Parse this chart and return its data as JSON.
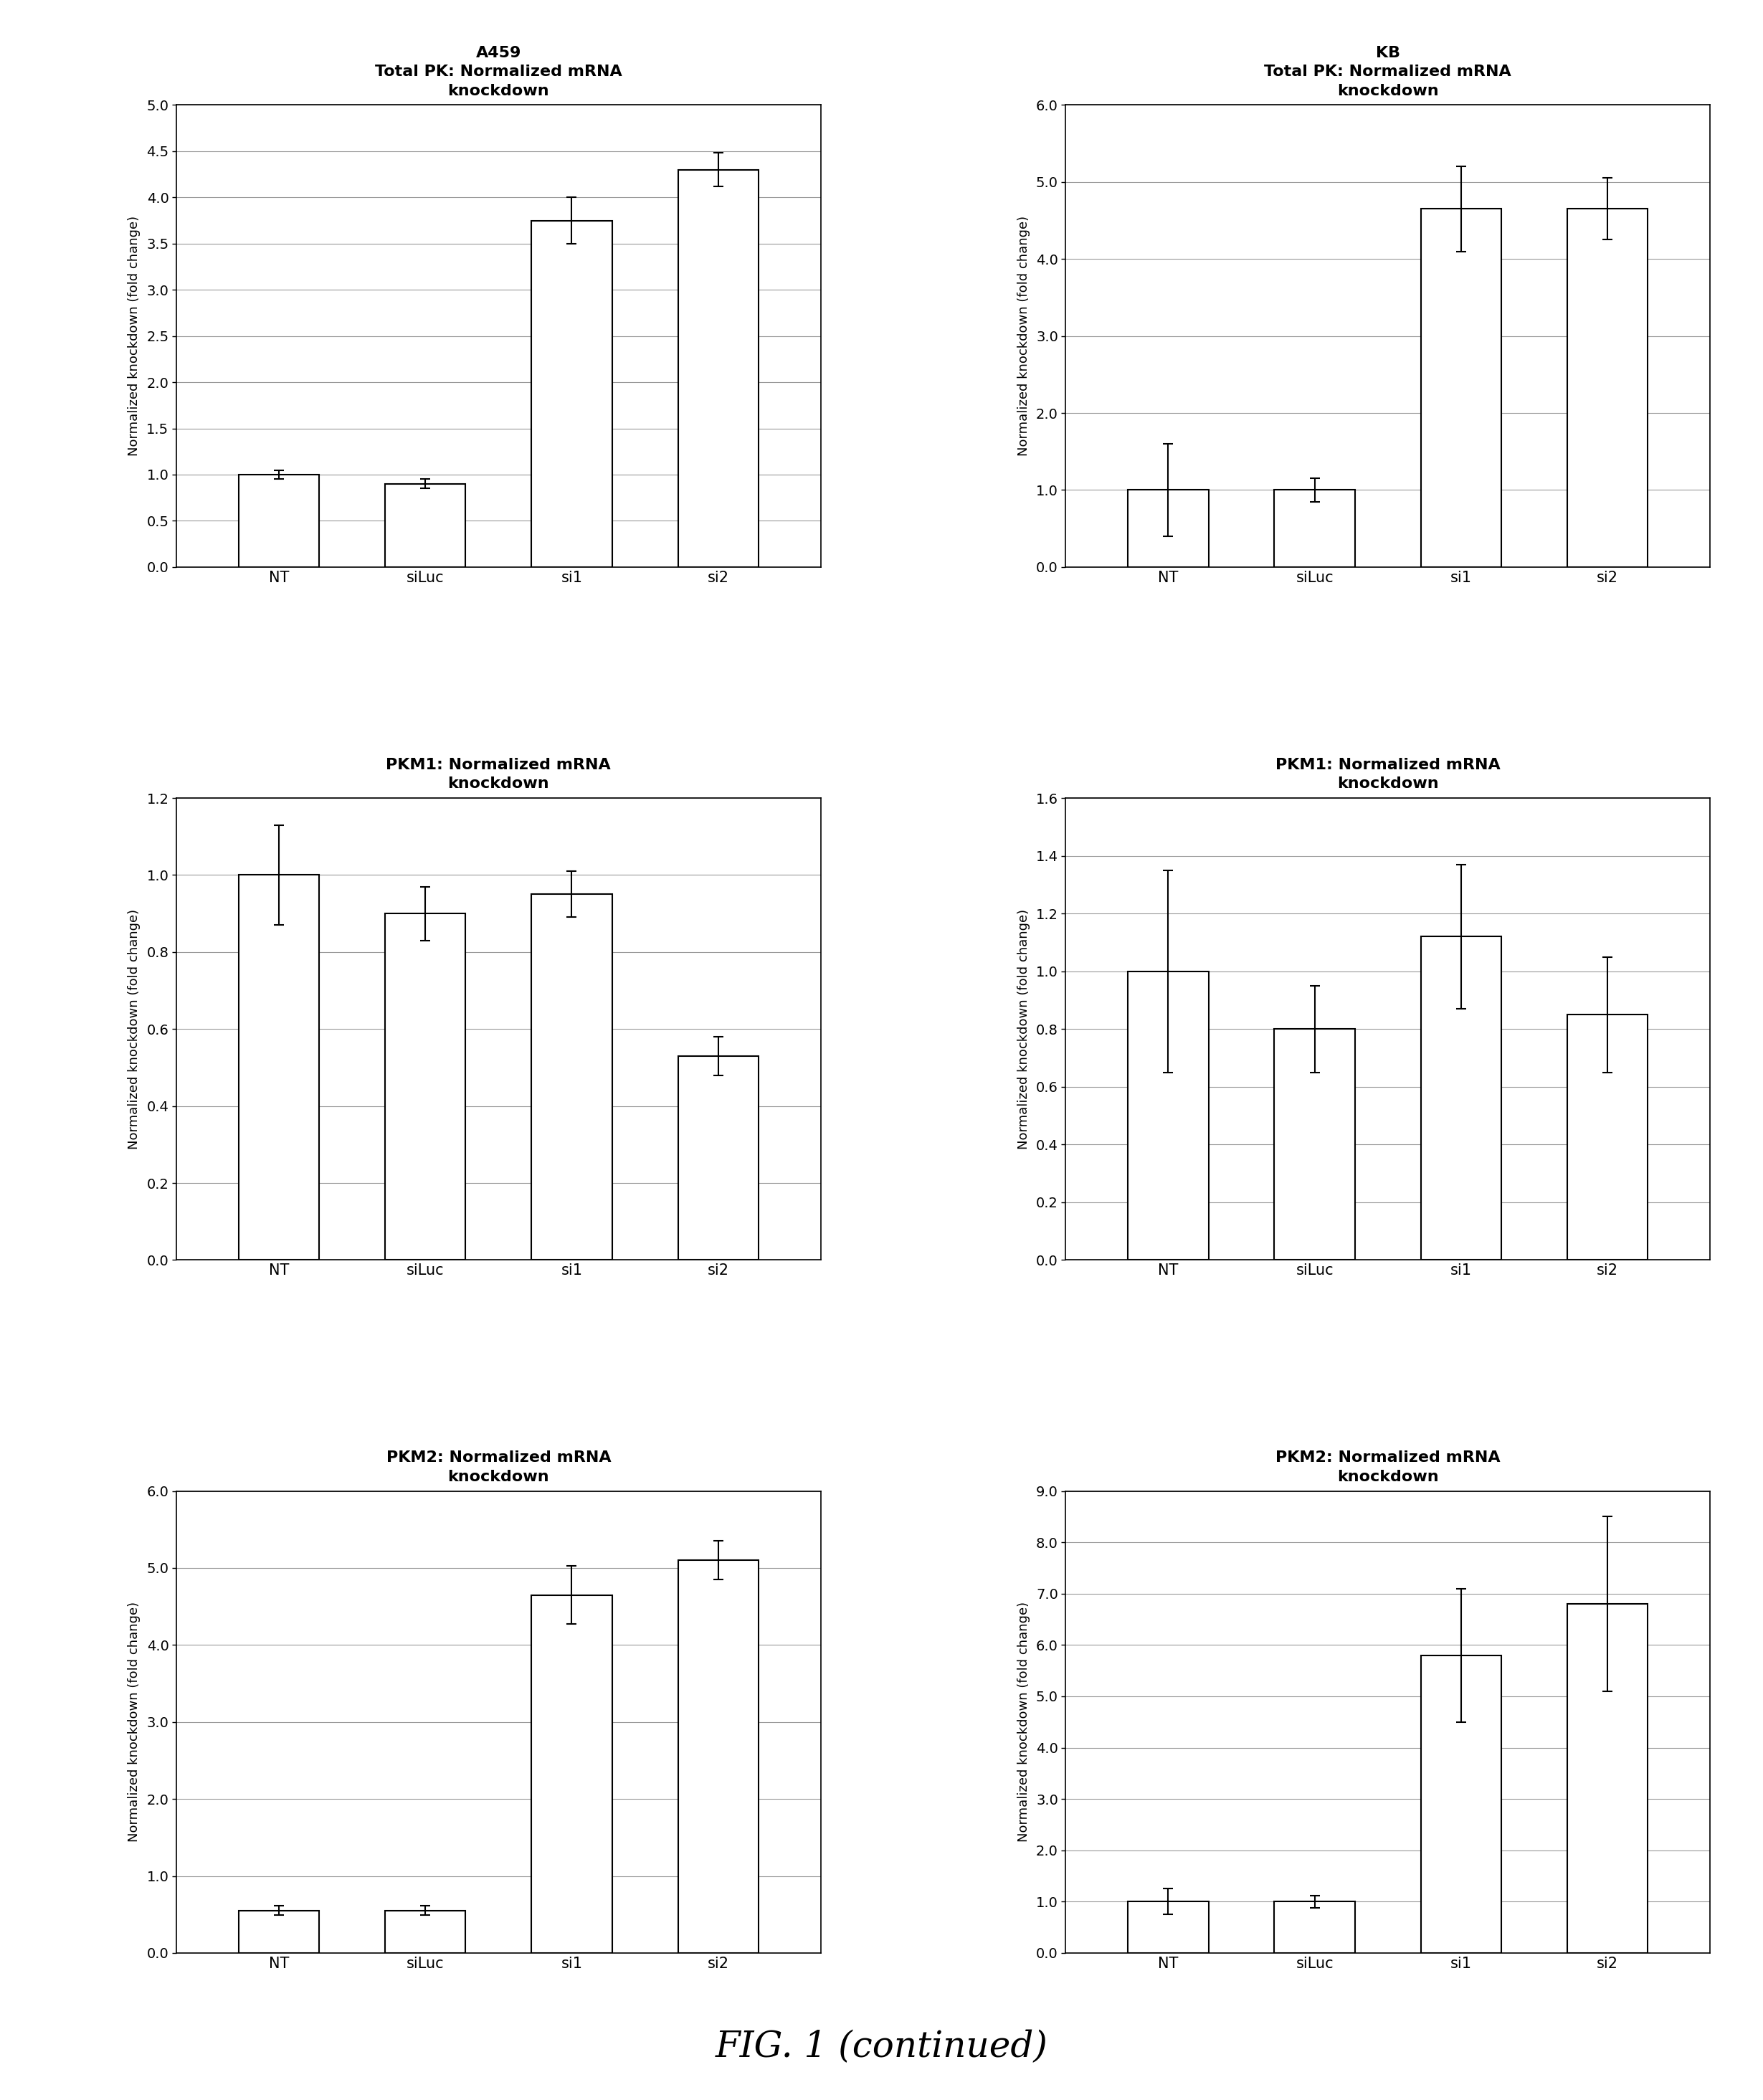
{
  "panels": [
    {
      "row": 0,
      "col": 0,
      "cell_line": "A459",
      "subtitle": "Total PK: Normalized mRNA\nknockdown",
      "categories": [
        "NT",
        "siLuc",
        "si1",
        "si2"
      ],
      "values": [
        1.0,
        0.9,
        3.75,
        4.3
      ],
      "errors": [
        0.05,
        0.05,
        0.25,
        0.18
      ],
      "ylim": [
        0.0,
        5.0
      ],
      "yticks": [
        0.0,
        0.5,
        1.0,
        1.5,
        2.0,
        2.5,
        3.0,
        3.5,
        4.0,
        4.5,
        5.0
      ],
      "yticklabels": [
        "0.0",
        "0.5",
        "1.0",
        "1.5",
        "2.0",
        "2.5",
        "3.0",
        "3.5",
        "4.0",
        "4.5",
        "5.0"
      ]
    },
    {
      "row": 0,
      "col": 1,
      "cell_line": "KB",
      "subtitle": "Total PK: Normalized mRNA\nknockdown",
      "categories": [
        "NT",
        "siLuc",
        "si1",
        "si2"
      ],
      "values": [
        1.0,
        1.0,
        4.65,
        4.65
      ],
      "errors": [
        0.6,
        0.15,
        0.55,
        0.4
      ],
      "ylim": [
        0.0,
        6.0
      ],
      "yticks": [
        0.0,
        1.0,
        2.0,
        3.0,
        4.0,
        5.0,
        6.0
      ],
      "yticklabels": [
        "0.0",
        "1.0",
        "2.0",
        "3.0",
        "4.0",
        "5.0",
        "6.0"
      ]
    },
    {
      "row": 1,
      "col": 0,
      "cell_line": null,
      "subtitle": "PKM1: Normalized mRNA\nknockdown",
      "categories": [
        "NT",
        "siLuc",
        "si1",
        "si2"
      ],
      "values": [
        1.0,
        0.9,
        0.95,
        0.53
      ],
      "errors": [
        0.13,
        0.07,
        0.06,
        0.05
      ],
      "ylim": [
        0.0,
        1.2
      ],
      "yticks": [
        0.0,
        0.2,
        0.4,
        0.6,
        0.8,
        1.0,
        1.2
      ],
      "yticklabels": [
        "0.0",
        "0.2",
        "0.4",
        "0.6",
        "0.8",
        "1.0",
        "1.2"
      ]
    },
    {
      "row": 1,
      "col": 1,
      "cell_line": null,
      "subtitle": "PKM1: Normalized mRNA\nknockdown",
      "categories": [
        "NT",
        "siLuc",
        "si1",
        "si2"
      ],
      "values": [
        1.0,
        0.8,
        1.12,
        0.85
      ],
      "errors": [
        0.35,
        0.15,
        0.25,
        0.2
      ],
      "ylim": [
        0.0,
        1.6
      ],
      "yticks": [
        0.0,
        0.2,
        0.4,
        0.6,
        0.8,
        1.0,
        1.2,
        1.4,
        1.6
      ],
      "yticklabels": [
        "0.0",
        "0.2",
        "0.4",
        "0.6",
        "0.8",
        "1.0",
        "1.2",
        "1.4",
        "1.6"
      ]
    },
    {
      "row": 2,
      "col": 0,
      "cell_line": null,
      "subtitle": "PKM2: Normalized mRNA\nknockdown",
      "categories": [
        "NT",
        "siLuc",
        "si1",
        "si2"
      ],
      "values": [
        0.55,
        0.55,
        4.65,
        5.1
      ],
      "errors": [
        0.06,
        0.06,
        0.38,
        0.25
      ],
      "ylim": [
        0.0,
        6.0
      ],
      "yticks": [
        0.0,
        1.0,
        2.0,
        3.0,
        4.0,
        5.0,
        6.0
      ],
      "yticklabels": [
        "0.0",
        "1.0",
        "2.0",
        "3.0",
        "4.0",
        "5.0",
        "6.0"
      ]
    },
    {
      "row": 2,
      "col": 1,
      "cell_line": null,
      "subtitle": "PKM2: Normalized mRNA\nknockdown",
      "categories": [
        "NT",
        "siLuc",
        "si1",
        "si2"
      ],
      "values": [
        1.0,
        1.0,
        5.8,
        6.8
      ],
      "errors": [
        0.25,
        0.12,
        1.3,
        1.7
      ],
      "ylim": [
        0.0,
        9.0
      ],
      "yticks": [
        0.0,
        1.0,
        2.0,
        3.0,
        4.0,
        5.0,
        6.0,
        7.0,
        8.0,
        9.0
      ],
      "yticklabels": [
        "0.0",
        "1.0",
        "2.0",
        "3.0",
        "4.0",
        "5.0",
        "6.0",
        "7.0",
        "8.0",
        "9.0"
      ]
    }
  ],
  "bar_color": "#ffffff",
  "bar_edge_color": "#000000",
  "bar_width": 0.55,
  "error_color": "#000000",
  "ylabel": "Normalized knockdown (fold change)",
  "figure_caption": "FIG. 1 (continued)",
  "background_color": "#ffffff",
  "grid_color": "#999999",
  "title_fontsize": 16,
  "cell_line_fontsize": 17,
  "tick_fontsize": 14,
  "ylabel_fontsize": 13,
  "caption_fontsize": 36
}
